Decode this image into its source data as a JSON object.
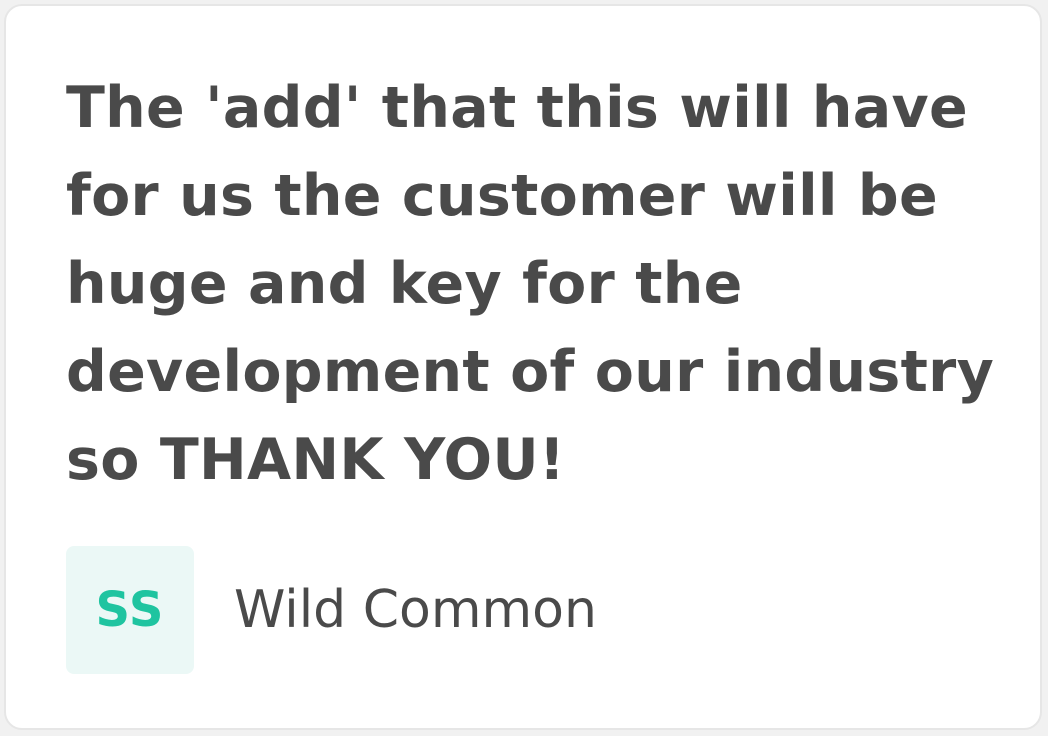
{
  "testimonial": {
    "quote_lines": [
      "The 'add' that this will have",
      "for us the customer will be",
      "huge and key for the",
      "development of our industry",
      "so THANK YOU!"
    ],
    "author": {
      "initials": "SS",
      "name": "Wild Common"
    }
  },
  "colors": {
    "text": "#4a4a4a",
    "avatar_bg": "#ebf8f6",
    "avatar_text": "#1fc4a0",
    "card_border": "#e6e6e6"
  }
}
